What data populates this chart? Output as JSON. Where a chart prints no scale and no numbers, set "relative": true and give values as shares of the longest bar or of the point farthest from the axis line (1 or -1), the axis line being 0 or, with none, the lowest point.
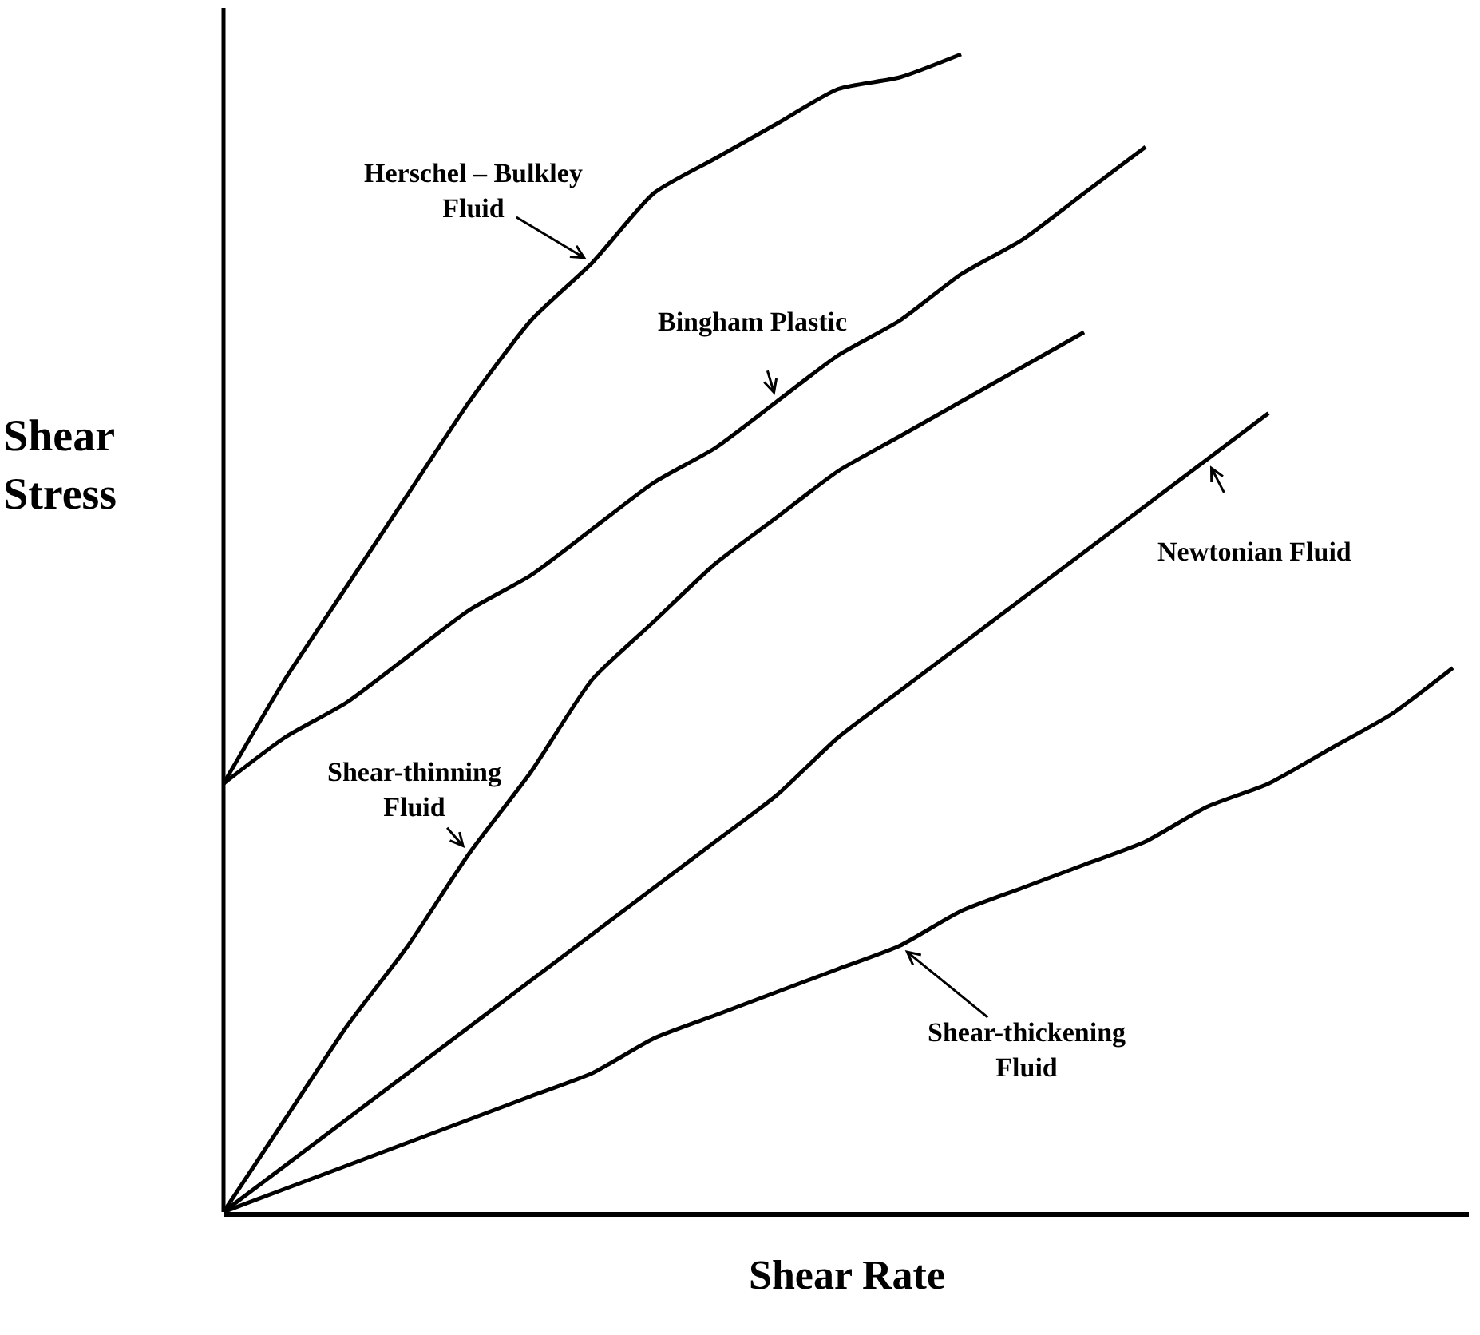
{
  "chart_data": {
    "type": "line",
    "relative": true,
    "xlabel": "Shear Rate",
    "ylabel": "Shear Stress",
    "legend": false,
    "marker": "none",
    "line_style": "solid",
    "categories": [
      null,
      null,
      null,
      null,
      null,
      null,
      null,
      null,
      null,
      null,
      null,
      null,
      null,
      null,
      null,
      null,
      null,
      null,
      null,
      null,
      null
    ],
    "series": [
      {
        "name": "Herschel – Bulkley Fluid",
        "color": "#000000",
        "values": [
          0.37,
          0.46,
          0.54,
          0.62,
          0.7,
          0.77,
          0.82,
          0.88,
          0.91,
          0.94,
          0.97,
          0.98,
          1.0,
          null,
          null,
          null,
          null,
          null,
          null,
          null,
          null
        ]
      },
      {
        "name": "Bingham Plastic",
        "color": "#000000",
        "values": [
          0.37,
          0.41,
          0.44,
          0.48,
          0.52,
          0.55,
          0.59,
          0.63,
          0.66,
          0.7,
          0.74,
          0.77,
          0.81,
          0.84,
          0.88,
          0.92,
          null,
          null,
          null,
          null,
          null
        ]
      },
      {
        "name": "Shear-thinning Fluid",
        "color": "#000000",
        "values": [
          0,
          0.08,
          0.16,
          0.23,
          0.31,
          0.38,
          0.46,
          0.51,
          0.56,
          0.6,
          0.64,
          0.67,
          0.7,
          0.73,
          0.76,
          null,
          null,
          null,
          null,
          null,
          null
        ]
      },
      {
        "name": "Newtonian Fluid",
        "color": "#000000",
        "values": [
          0,
          0.04,
          0.08,
          0.12,
          0.16,
          0.2,
          0.24,
          0.28,
          0.32,
          0.36,
          0.41,
          0.45,
          0.49,
          0.53,
          0.57,
          0.61,
          0.65,
          0.69,
          null,
          null,
          null
        ]
      },
      {
        "name": "Shear-thickening Fluid",
        "color": "#000000",
        "values": [
          0,
          0.02,
          0.04,
          0.06,
          0.08,
          0.1,
          0.12,
          0.15,
          0.17,
          0.19,
          0.21,
          0.23,
          0.26,
          0.28,
          0.3,
          0.32,
          0.35,
          0.37,
          0.4,
          0.43,
          0.47
        ]
      }
    ]
  }
}
